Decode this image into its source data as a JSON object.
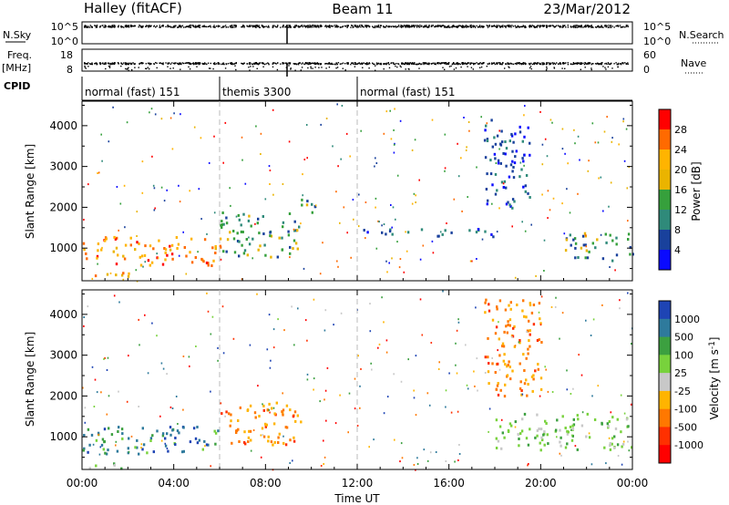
{
  "header": {
    "title_left": "Halley (fitACF)",
    "title_center": "Beam 11",
    "title_right": "23/Mar/2012"
  },
  "strips": {
    "nsky_label": "N.Sky",
    "nsearch_label": "N.Search",
    "log_ticks": [
      "10^5",
      "10^0"
    ],
    "freq_label": "Freq.",
    "freq_unit": "[MHz]",
    "freq_ticks": [
      "18",
      "8"
    ],
    "nave_label": "Nave",
    "nave_ticks": [
      "60",
      "0"
    ],
    "cpid_label": "CPID"
  },
  "cpid_segments": [
    {
      "label": "normal (fast) 151",
      "start_hour": 0,
      "end_hour": 6
    },
    {
      "label": "themis 3300",
      "start_hour": 6,
      "end_hour": 12
    },
    {
      "label": "normal (fast) 151",
      "start_hour": 12,
      "end_hour": 24
    }
  ],
  "axes": {
    "xlabel": "Time UT",
    "x_tick_labels": [
      "00:00",
      "04:00",
      "08:00",
      "12:00",
      "16:00",
      "20:00",
      "00:00"
    ],
    "x_tick_hours": [
      0,
      4,
      8,
      12,
      16,
      20,
      24
    ],
    "ylabel": "Slant Range [km]",
    "y_ticks": [
      1000,
      2000,
      3000,
      4000
    ],
    "ylim": [
      200,
      4600
    ],
    "xlim_hours": [
      0,
      24
    ],
    "dashed_lines_hours": [
      6,
      12
    ]
  },
  "chart_data": [
    {
      "type": "heatmap",
      "panel": "power",
      "colorbar_label": "Power [dB]",
      "colorbar_ticks": [
        "28",
        "24",
        "20",
        "16",
        "12",
        "8",
        "4"
      ],
      "colorbar_colors": [
        "#ff0000",
        "#ff6a00",
        "#ffb400",
        "#eab400",
        "#36a03c",
        "#2f8a7a",
        "#19419c",
        "#0a0aff"
      ],
      "xlabel": "Time UT",
      "ylabel": "Slant Range [km]",
      "ylim": [
        200,
        4600
      ],
      "regions": [
        {
          "h0": 0.0,
          "h1": 6.0,
          "r0": 600,
          "r1": 1300,
          "level": "high"
        },
        {
          "h0": 0.0,
          "h1": 2.0,
          "r0": 250,
          "r1": 450,
          "level": "high"
        },
        {
          "h0": 6.0,
          "h1": 9.5,
          "r0": 800,
          "r1": 1900,
          "level": "mid"
        },
        {
          "h0": 9.5,
          "h1": 10.2,
          "r0": 1700,
          "r1": 2300,
          "level": "mid"
        },
        {
          "h0": 12.0,
          "h1": 18.0,
          "r0": 1300,
          "r1": 1500,
          "level": "low"
        },
        {
          "h0": 17.5,
          "h1": 19.5,
          "r0": 2000,
          "r1": 4200,
          "level": "low"
        },
        {
          "h0": 21.0,
          "h1": 24.0,
          "r0": 700,
          "r1": 1400,
          "level": "mid"
        }
      ]
    },
    {
      "type": "heatmap",
      "panel": "velocity",
      "colorbar_label": "Velocity [m s^-1]",
      "colorbar_ticks": [
        "1000",
        "500",
        "100",
        "25",
        "-25",
        "-100",
        "-500",
        "-1000"
      ],
      "colorbar_colors": [
        "#1e44b4",
        "#2e7a9c",
        "#3ca040",
        "#78d23c",
        "#c8c8c8",
        "#ffb400",
        "#ff7800",
        "#ff3000",
        "#ff0000"
      ],
      "xlabel": "Time UT",
      "ylabel": "Slant Range [km]",
      "ylim": [
        200,
        4600
      ],
      "regions": [
        {
          "h0": 0.0,
          "h1": 6.0,
          "r0": 600,
          "r1": 1300,
          "level": "positive"
        },
        {
          "h0": 0.0,
          "h1": 2.0,
          "r0": 250,
          "r1": 400,
          "level": "small-positive"
        },
        {
          "h0": 6.0,
          "h1": 9.5,
          "r0": 800,
          "r1": 1900,
          "level": "negative"
        },
        {
          "h0": 17.5,
          "h1": 20.0,
          "r0": 2000,
          "r1": 4400,
          "level": "negative"
        },
        {
          "h0": 18.0,
          "h1": 24.0,
          "r0": 700,
          "r1": 1600,
          "level": "small-positive"
        }
      ]
    }
  ]
}
